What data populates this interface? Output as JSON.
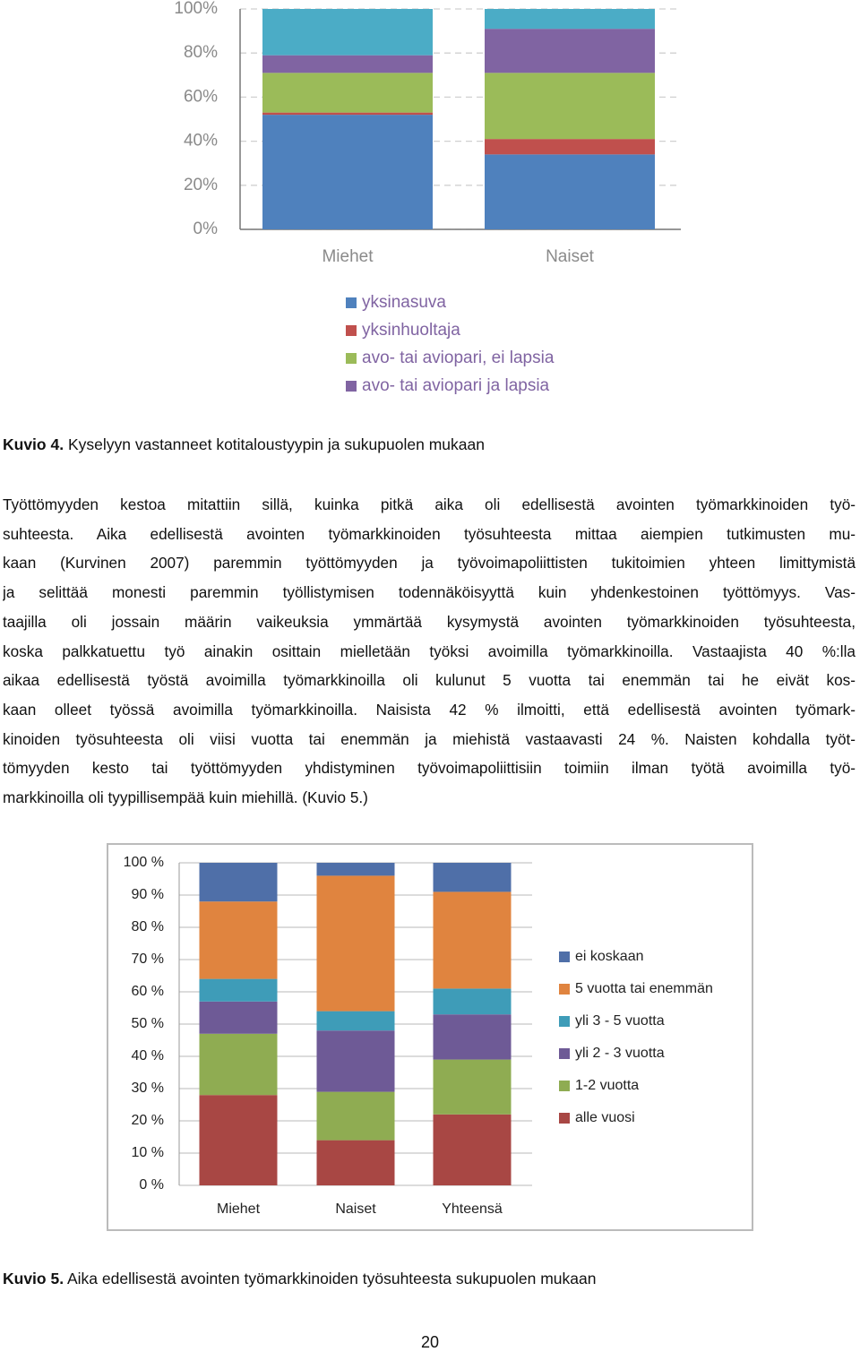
{
  "chart_data": [
    {
      "type": "bar",
      "stacked": true,
      "categories": [
        "Miehet",
        "Naiset"
      ],
      "series": [
        {
          "name": "yksinasuva",
          "color": "#4f81bd",
          "values": [
            52,
            34
          ]
        },
        {
          "name": "yksinhuoltaja",
          "color": "#c0504d",
          "values": [
            1,
            7
          ]
        },
        {
          "name": "avo- tai aviopari, ei lapsia",
          "color": "#9bbb59",
          "values": [
            18,
            30
          ]
        },
        {
          "name": "avo- tai aviopari ja lapsia",
          "color": "#8064a2",
          "values": [
            8,
            20
          ]
        },
        {
          "color": "#4bacc6",
          "values": [
            21,
            9
          ]
        }
      ],
      "ylim": [
        0,
        100
      ],
      "yticks": [
        {
          "value": 0,
          "label": "0%"
        },
        {
          "value": 20,
          "label": "20%"
        },
        {
          "value": 40,
          "label": "40%"
        },
        {
          "value": 60,
          "label": "60%"
        },
        {
          "value": 80,
          "label": "80%"
        },
        {
          "value": 100,
          "label": "100%"
        }
      ],
      "grid": "dashed",
      "legend": "bottom"
    },
    {
      "type": "bar",
      "stacked": true,
      "categories": [
        "Miehet",
        "Naiset",
        "Yhteensä"
      ],
      "series": [
        {
          "name": "alle vuosi",
          "color": "#a84744",
          "values": [
            28,
            14,
            22
          ]
        },
        {
          "name": "1-2 vuotta",
          "color": "#8fac52",
          "values": [
            19,
            15,
            17
          ]
        },
        {
          "name": "yli 2 - 3 vuotta",
          "color": "#6e5a96",
          "values": [
            10,
            19,
            14
          ]
        },
        {
          "name": "yli 3 - 5 vuotta",
          "color": "#3e9cb8",
          "values": [
            7,
            6,
            8
          ]
        },
        {
          "name": "5 vuotta tai enemmän",
          "color": "#e0843f",
          "values": [
            24,
            42,
            30
          ]
        },
        {
          "name": "ei koskaan",
          "color": "#4f6fa8",
          "values": [
            12,
            4,
            9
          ]
        }
      ],
      "ylim": [
        0,
        100
      ],
      "yticks": [
        {
          "value": 0,
          "label": "0 %"
        },
        {
          "value": 10,
          "label": "10 %"
        },
        {
          "value": 20,
          "label": "20 %"
        },
        {
          "value": 30,
          "label": "30 %"
        },
        {
          "value": 40,
          "label": "40 %"
        },
        {
          "value": 50,
          "label": "50 %"
        },
        {
          "value": 60,
          "label": "60 %"
        },
        {
          "value": 70,
          "label": "70 %"
        },
        {
          "value": 80,
          "label": "80 %"
        },
        {
          "value": 90,
          "label": "90 %"
        },
        {
          "value": 100,
          "label": "100 %"
        }
      ],
      "grid": "solid",
      "legend": "right"
    }
  ],
  "captions": [
    {
      "label": "Kuvio 4.",
      "text": "Kyselyyn vastanneet kotitaloustyypin ja sukupuolen mukaan"
    },
    {
      "label": "Kuvio 5.",
      "text": "Aika edellisestä avointen työmarkkinoiden työsuhteesta sukupuolen mukaan"
    }
  ],
  "paragraph": {
    "lines": [
      "Työttömyyden kestoa mitattiin sillä, kuinka pitkä aika oli edellisestä avointen työmarkkinoiden työ-",
      "suhteesta. Aika edellisestä avointen työmarkkinoiden työsuhteesta mittaa aiempien tutkimusten mu-",
      "kaan (Kurvinen 2007) paremmin työttömyyden ja työvoimapoliittisten tukitoimien yhteen limittymistä",
      "ja selittää monesti paremmin työllistymisen todennäköisyyttä kuin yhdenkestoinen työttömyys. Vas-",
      "taajilla oli jossain määrin vaikeuksia ymmärtää kysymystä avointen työmarkkinoiden työsuhteesta,",
      "koska palkkatuettu työ ainakin osittain mielletään työksi avoimilla työmarkkinoilla. Vastaajista 40 %:lla",
      "aikaa edellisestä työstä avoimilla työmarkkinoilla oli kulunut 5 vuotta tai enemmän tai he eivät kos-",
      "kaan olleet työssä avoimilla työmarkkinoilla. Naisista 42 % ilmoitti, että edellisestä avointen työmark-",
      "kinoiden työsuhteesta oli viisi vuotta tai enemmän ja miehistä vastaavasti 24 %. Naisten kohdalla työt-",
      "tömyyden kesto tai työttömyyden yhdistyminen työvoimapoliittisiin toimiin ilman työtä avoimilla työ-",
      "markkinoilla oli tyypillisempää kuin miehillä. (Kuvio 5.)"
    ]
  },
  "page_number": 20
}
